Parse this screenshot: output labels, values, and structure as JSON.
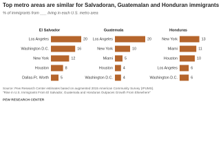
{
  "title": "Top metro areas are similar for Salvadoran, Guatemalan and Honduran immigrants",
  "subtitle": "% of immigrants from ___ living in each U.S. metro area",
  "chart_data": [
    {
      "type": "bar",
      "title": "El Salvador",
      "color": "#b5652c",
      "categories": [
        "Los Angeles",
        "Washington D.C.",
        "New York",
        "Houston",
        "Dallas-Ft. Worth"
      ],
      "values": [
        20,
        16,
        12,
        8,
        5
      ]
    },
    {
      "type": "bar",
      "title": "Guatemala",
      "color": "#b5652c",
      "categories": [
        "Los Angeles",
        "New York",
        "Miami",
        "Houston",
        "Washington D.C."
      ],
      "values": [
        20,
        10,
        5,
        4,
        4
      ]
    },
    {
      "type": "bar",
      "title": "Honduras",
      "color": "#b5652c",
      "categories": [
        "New York",
        "Miami",
        "Houston",
        "Los Angeles",
        "Washington D.C."
      ],
      "values": [
        13,
        11,
        10,
        6,
        6
      ]
    }
  ],
  "note": "Source: Pew Research Center estimates based on augmented 2015 American Community Survey (IPUMS).",
  "source": "\"Rise in U.S. Immigrants From El Salvador, Guatemala and Honduras Outpaces Growth From Elsewhere\"",
  "footer": "PEW RESEARCH CENTER"
}
